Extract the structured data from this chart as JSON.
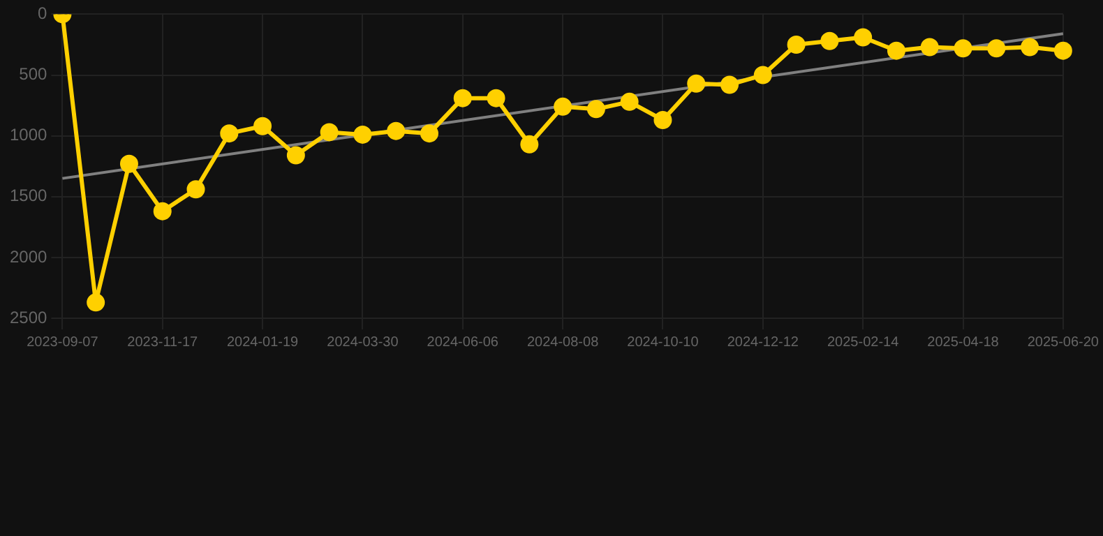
{
  "chart_data": {
    "type": "line",
    "categories": [
      "2023-09-07",
      null,
      null,
      "2023-11-17",
      null,
      null,
      "2024-01-19",
      null,
      null,
      "2024-03-30",
      null,
      null,
      "2024-06-06",
      null,
      null,
      "2024-08-08",
      null,
      null,
      "2024-10-10",
      null,
      null,
      "2024-12-12",
      null,
      null,
      "2025-02-14",
      null,
      null,
      "2025-04-18",
      null,
      null,
      "2025-06-20"
    ],
    "series": [
      {
        "color": "#ffd000",
        "marker": "circle",
        "values": [
          0,
          2370,
          1230,
          1620,
          1440,
          980,
          920,
          1160,
          970,
          990,
          960,
          980,
          690,
          690,
          1070,
          760,
          780,
          720,
          870,
          570,
          580,
          500,
          250,
          220,
          190,
          300,
          270,
          280,
          280,
          270,
          300
        ]
      },
      {
        "type": "line",
        "color": "#808080",
        "marker": "none",
        "values": [
          1350,
          null,
          null,
          null,
          null,
          null,
          null,
          null,
          null,
          null,
          null,
          null,
          null,
          null,
          null,
          null,
          null,
          null,
          null,
          null,
          null,
          null,
          null,
          null,
          null,
          null,
          null,
          null,
          null,
          null,
          160
        ]
      }
    ],
    "ylim": [
      2500,
      0
    ],
    "yticks": [
      0,
      500,
      1000,
      1500,
      2000,
      2500
    ],
    "grid": true,
    "legend": false
  }
}
